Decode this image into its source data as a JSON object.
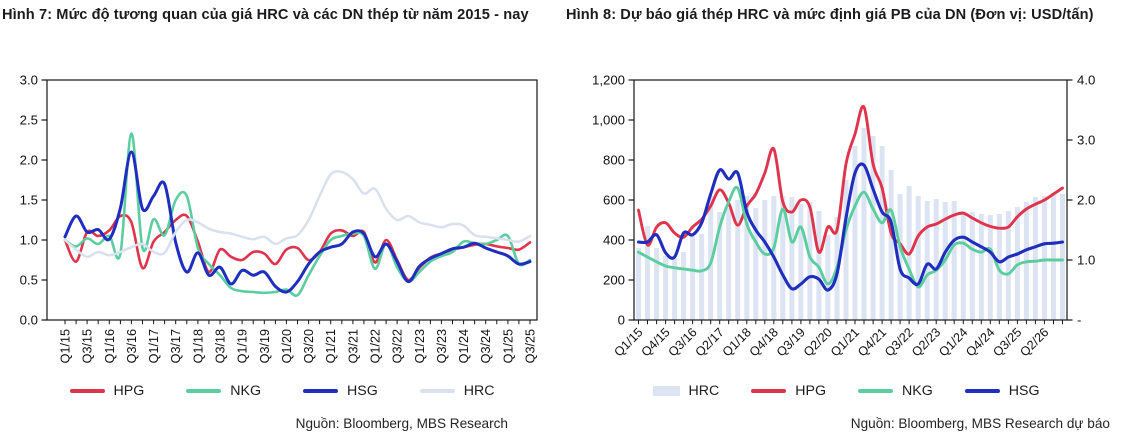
{
  "chart_data": [
    {
      "id": "chart7",
      "type": "line",
      "title": "Hình 7: Mức độ tương quan của giá HRC và các DN thép từ năm 2015 - nay",
      "source": "Nguồn: Bloomberg, MBS Research",
      "x_label_step": 2,
      "x": [
        "Q1/15",
        "Q2/15",
        "Q3/15",
        "Q4/15",
        "Q1/16",
        "Q2/16",
        "Q3/16",
        "Q4/16",
        "Q1/17",
        "Q2/17",
        "Q3/17",
        "Q4/17",
        "Q1/18",
        "Q2/18",
        "Q3/18",
        "Q4/18",
        "Q1/19",
        "Q2/19",
        "Q3/19",
        "Q4/19",
        "Q1/20",
        "Q2/20",
        "Q3/20",
        "Q4/20",
        "Q1/21",
        "Q2/21",
        "Q3/21",
        "Q4/21",
        "Q1/22",
        "Q2/22",
        "Q3/22",
        "Q4/22",
        "Q1/23",
        "Q2/23",
        "Q3/23",
        "Q4/23",
        "Q1/24",
        "Q2/24",
        "Q3/24",
        "Q4/24",
        "Q1/25",
        "Q2/25",
        "Q3/25"
      ],
      "y_left": {
        "min": 0,
        "max": 3,
        "tick_values": [
          0,
          0.5,
          1,
          1.5,
          2,
          2.5,
          3
        ],
        "tick_labels": [
          "0.0",
          "0.5",
          "1.0",
          "1.5",
          "2.0",
          "2.5",
          "3.0"
        ]
      },
      "series": [
        {
          "name": "HPG",
          "type": "line",
          "axis": "left",
          "color": "#E0334C",
          "width": 2.6,
          "values": [
            1.0,
            0.73,
            1.1,
            1.05,
            1.12,
            1.3,
            1.22,
            0.65,
            0.98,
            1.1,
            1.25,
            1.3,
            0.98,
            0.6,
            0.88,
            0.79,
            0.75,
            0.85,
            0.83,
            0.7,
            0.88,
            0.9,
            0.75,
            0.85,
            1.08,
            1.12,
            1.05,
            1.1,
            0.72,
            1.0,
            0.75,
            0.5,
            0.65,
            0.78,
            0.83,
            0.88,
            0.91,
            0.94,
            0.95,
            0.92,
            0.9,
            0.88,
            0.97
          ]
        },
        {
          "name": "NKG",
          "type": "line",
          "axis": "left",
          "color": "#5BCE9F",
          "width": 2.6,
          "values": [
            1.0,
            0.92,
            1.02,
            0.95,
            1.05,
            0.83,
            2.33,
            0.9,
            1.26,
            1.06,
            1.5,
            1.55,
            0.9,
            0.7,
            0.56,
            0.4,
            0.36,
            0.35,
            0.34,
            0.35,
            0.38,
            0.31,
            0.56,
            0.8,
            1.0,
            1.05,
            1.08,
            1.05,
            0.64,
            0.95,
            0.66,
            0.48,
            0.6,
            0.73,
            0.8,
            0.85,
            0.98,
            0.96,
            0.95,
            1.0,
            1.05,
            0.7,
            0.75
          ]
        },
        {
          "name": "HSG",
          "type": "line",
          "axis": "left",
          "color": "#1F2EBE",
          "width": 3,
          "values": [
            1.04,
            1.3,
            1.1,
            1.13,
            1.01,
            1.4,
            2.1,
            1.39,
            1.55,
            1.7,
            0.97,
            0.6,
            0.84,
            0.56,
            0.66,
            0.45,
            0.62,
            0.56,
            0.6,
            0.42,
            0.35,
            0.48,
            0.7,
            0.85,
            0.91,
            0.95,
            1.1,
            1.08,
            0.79,
            0.95,
            0.73,
            0.48,
            0.67,
            0.77,
            0.83,
            0.89,
            0.91,
            0.96,
            0.9,
            0.85,
            0.8,
            0.7,
            0.73
          ]
        },
        {
          "name": "HRC",
          "type": "line",
          "axis": "left",
          "color": "#D9E0EE",
          "width": 2.5,
          "values": [
            1.0,
            0.88,
            0.79,
            0.85,
            0.81,
            0.85,
            0.91,
            0.95,
            0.85,
            0.84,
            1.1,
            1.25,
            1.22,
            1.14,
            1.1,
            1.08,
            1.04,
            1.01,
            1.04,
            0.95,
            1.02,
            1.06,
            1.25,
            1.55,
            1.82,
            1.85,
            1.76,
            1.58,
            1.64,
            1.39,
            1.25,
            1.3,
            1.22,
            1.19,
            1.16,
            1.2,
            1.18,
            1.06,
            1.04,
            1.02,
            1.0,
            0.98,
            1.05
          ]
        }
      ],
      "legend": [
        {
          "label": "HPG",
          "swatch": "line",
          "color": "#E0334C"
        },
        {
          "label": "NKG",
          "swatch": "line",
          "color": "#5BCE9F"
        },
        {
          "label": "HSG",
          "swatch": "line",
          "color": "#1F2EBE"
        },
        {
          "label": "HRC",
          "swatch": "line",
          "color": "#D9E0EE"
        }
      ]
    },
    {
      "id": "chart8",
      "type": "combo-bar-line",
      "title": "Hình 8: Dự báo giá thép HRC và mức định giá PB của DN (Đơn vị: USD/tấn)",
      "source": "Nguồn: Bloomberg, MBS Research dự báo",
      "x_label_step": 3,
      "x": [
        "Q1/15",
        "Q2/15",
        "Q3/15",
        "Q4/15",
        "Q1/16",
        "Q2/16",
        "Q3/16",
        "Q4/16",
        "Q1/17",
        "Q2/17",
        "Q3/17",
        "Q4/17",
        "Q1/18",
        "Q2/18",
        "Q3/18",
        "Q4/18",
        "Q1/19",
        "Q2/19",
        "Q3/19",
        "Q4/19",
        "Q1/20",
        "Q2/20",
        "Q3/20",
        "Q4/20",
        "Q1/21",
        "Q2/21",
        "Q3/21",
        "Q4/21",
        "Q1/22",
        "Q2/22",
        "Q3/22",
        "Q4/22",
        "Q1/23",
        "Q2/23",
        "Q3/23",
        "Q4/23",
        "Q1/24",
        "Q2/24",
        "Q3/24",
        "Q4/24",
        "Q1/25",
        "Q2/25",
        "Q3/25",
        "Q4/25",
        "Q1/26",
        "Q2/26",
        "Q3/26",
        "Q4/26"
      ],
      "y_left": {
        "min": 0,
        "max": 1200,
        "tick_values": [
          0,
          200,
          400,
          600,
          800,
          1000,
          1200
        ],
        "tick_labels": [
          "0",
          "200",
          "400",
          "600",
          "800",
          "1,000",
          "1,200"
        ]
      },
      "y_right": {
        "min": 0,
        "max": 4,
        "tick_values": [
          0,
          1,
          2,
          3,
          4
        ],
        "tick_labels": [
          "-",
          "1.0",
          "2.0",
          "3.0",
          "4.0"
        ]
      },
      "series": [
        {
          "name": "HRC",
          "type": "bar",
          "axis": "left",
          "color": "#DCE3F2",
          "values": [
            360,
            470,
            360,
            320,
            310,
            340,
            420,
            430,
            620,
            540,
            560,
            600,
            620,
            560,
            600,
            620,
            620,
            615,
            580,
            590,
            545,
            425,
            515,
            700,
            870,
            960,
            920,
            870,
            750,
            630,
            670,
            620,
            595,
            605,
            590,
            595,
            545,
            540,
            530,
            525,
            530,
            545,
            565,
            590,
            615,
            620,
            625,
            630
          ]
        },
        {
          "name": "HPG",
          "type": "line",
          "axis": "right",
          "color": "#E0334C",
          "width": 2.9,
          "values": [
            1.83,
            1.25,
            1.55,
            1.62,
            1.45,
            1.38,
            1.55,
            1.68,
            1.9,
            2.17,
            1.95,
            1.58,
            1.9,
            2.1,
            2.45,
            2.85,
            1.97,
            1.8,
            2.0,
            1.88,
            1.13,
            1.55,
            1.5,
            2.6,
            3.1,
            3.55,
            2.6,
            2.2,
            1.45,
            1.27,
            1.1,
            1.4,
            1.55,
            1.6,
            1.68,
            1.75,
            1.78,
            1.7,
            1.62,
            1.56,
            1.53,
            1.55,
            1.72,
            1.85,
            1.93,
            2.0,
            2.1,
            2.2
          ]
        },
        {
          "name": "NKG",
          "type": "line",
          "axis": "right",
          "color": "#5BCE9F",
          "width": 2.9,
          "values": [
            1.13,
            1.05,
            0.97,
            0.9,
            0.87,
            0.85,
            0.83,
            0.82,
            0.95,
            1.55,
            1.97,
            2.2,
            1.6,
            1.3,
            1.1,
            1.2,
            1.85,
            1.3,
            1.55,
            1.05,
            0.88,
            0.6,
            0.88,
            1.5,
            1.9,
            2.13,
            1.85,
            1.62,
            1.83,
            1.22,
            0.85,
            0.55,
            0.75,
            0.83,
            1.0,
            1.25,
            1.28,
            1.18,
            1.13,
            1.18,
            0.83,
            0.77,
            0.92,
            0.97,
            0.98,
            1.0,
            1.0,
            1.0
          ]
        },
        {
          "name": "HSG",
          "type": "line",
          "axis": "right",
          "color": "#1F2EBE",
          "width": 3.1,
          "values": [
            1.3,
            1.3,
            1.42,
            1.12,
            1.05,
            1.45,
            1.42,
            1.62,
            2.1,
            2.5,
            2.35,
            2.45,
            1.8,
            1.5,
            1.3,
            1.05,
            0.75,
            0.52,
            0.6,
            0.72,
            0.68,
            0.5,
            0.77,
            1.7,
            2.45,
            2.58,
            2.18,
            1.8,
            1.63,
            0.85,
            0.7,
            0.6,
            0.93,
            0.85,
            1.13,
            1.33,
            1.38,
            1.3,
            1.22,
            1.13,
            0.97,
            1.05,
            1.1,
            1.17,
            1.22,
            1.27,
            1.28,
            1.3
          ]
        }
      ],
      "legend": [
        {
          "label": "HRC",
          "swatch": "rect",
          "color": "#DCE3F2"
        },
        {
          "label": "HPG",
          "swatch": "line",
          "color": "#E0334C"
        },
        {
          "label": "NKG",
          "swatch": "line",
          "color": "#5BCE9F"
        },
        {
          "label": "HSG",
          "swatch": "line",
          "color": "#1F2EBE"
        }
      ]
    }
  ]
}
